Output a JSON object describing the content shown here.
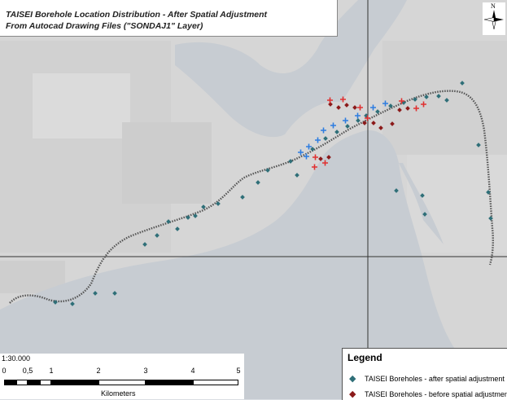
{
  "title": {
    "line1": "TAISEI Borehole Location Distribution - After Spatial Adjustment",
    "line2": "From Autocad Drawing Files (\"SONDAJ1\" Layer)"
  },
  "north_arrow": {
    "label": "N",
    "icon": "north-arrow-icon"
  },
  "scale": {
    "ratio": "1:30.000",
    "ticks": [
      "0",
      "0,5",
      "1",
      "2",
      "3",
      "4",
      "5"
    ],
    "unit": "Kilometers"
  },
  "legend": {
    "title": "Legend",
    "items": [
      {
        "symbol": "◆",
        "label": "TAISEI Boreholes - after spatial adjustment",
        "color": "#2f6f78"
      },
      {
        "symbol": "◆",
        "label": "TAISEI Boreholes - before spatial adjustment",
        "color": "#8b1a1a"
      }
    ]
  },
  "colors": {
    "water": "#c9ced4",
    "land": "#dcdcdc",
    "route": "#555555",
    "after_marker": "#2f6f78",
    "before_marker": "#8b1a1a",
    "cross_blue": "#2e7de0",
    "cross_red": "#e03030",
    "grid_line": "#333333"
  }
}
